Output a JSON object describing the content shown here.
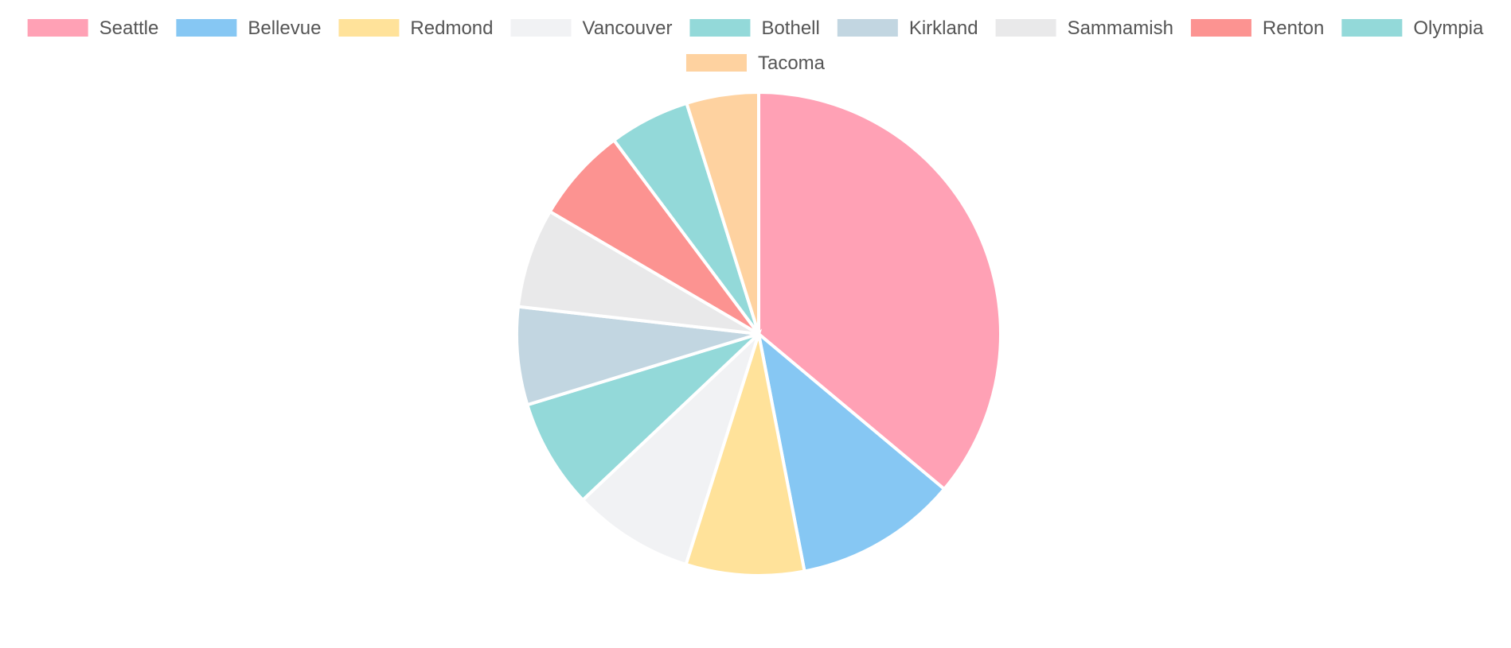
{
  "chart_data": {
    "type": "pie",
    "title": "",
    "legend_position": "top",
    "categories": [
      "Seattle",
      "Bellevue",
      "Redmond",
      "Vancouver",
      "Bothell",
      "Kirkland",
      "Sammamish",
      "Renton",
      "Olympia",
      "Tacoma"
    ],
    "values": [
      37.5,
      11.3,
      8.2,
      8.4,
      7.6,
      6.8,
      6.9,
      6.6,
      5.6,
      5.0
    ],
    "colors": [
      "#ffa1b5",
      "#86c7f3",
      "#ffe29a",
      "#f1f2f4",
      "#93d9d9",
      "#c2d6e1",
      "#e9e9ea",
      "#fc9391",
      "#93d9d9",
      "#fed2a0"
    ],
    "border_color": "#ffffff",
    "start_angle_deg": -90
  }
}
